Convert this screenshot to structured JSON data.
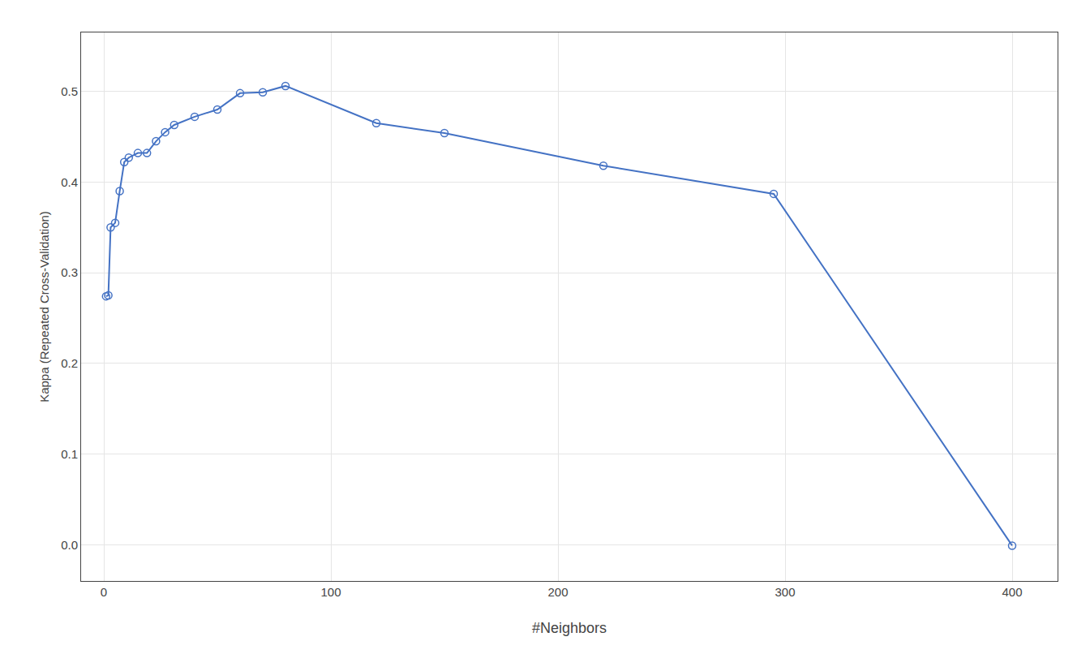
{
  "chart_data": {
    "type": "line",
    "x": [
      1,
      2,
      3,
      5,
      7,
      9,
      11,
      15,
      19,
      23,
      27,
      31,
      40,
      50,
      60,
      70,
      80,
      120,
      150,
      220,
      295,
      400
    ],
    "values": [
      0.274,
      0.275,
      0.35,
      0.355,
      0.39,
      0.422,
      0.427,
      0.432,
      0.432,
      0.445,
      0.455,
      0.463,
      0.472,
      0.48,
      0.498,
      0.499,
      0.506,
      0.465,
      0.454,
      0.418,
      0.387,
      -0.001
    ],
    "color": "#4472c4",
    "marker": "circle-open",
    "line_style": "solid",
    "xlabel": "#Neighbors",
    "ylabel": "Kappa (Repeated Cross-Validation)",
    "xlim": [
      -10,
      420
    ],
    "ylim": [
      -0.04,
      0.565
    ],
    "xticks": [
      0,
      100,
      200,
      300,
      400
    ],
    "yticks": [
      {
        "value": 0.0,
        "label": "0.0"
      },
      0.1,
      0.2,
      0.3,
      0.4,
      0.5
    ],
    "grid": true
  }
}
